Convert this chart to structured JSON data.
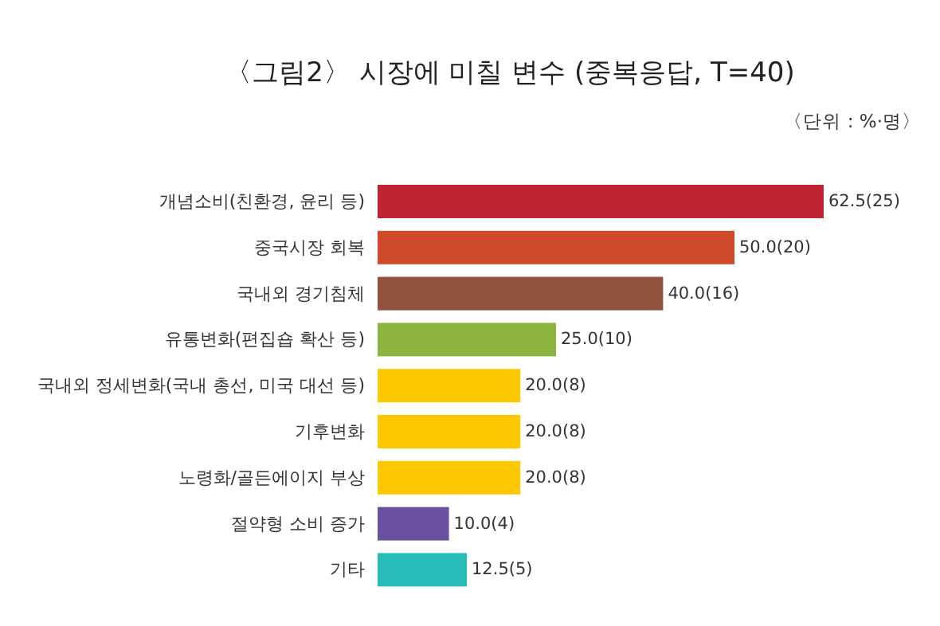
{
  "chart_data": {
    "type": "bar",
    "orientation": "horizontal",
    "title": "〈그림2〉 시장에 미칠 변수 (중복응답, T=40)",
    "annotations": [
      "〈단위 : %·명〉"
    ],
    "categories": [
      "개념소비(친환경, 윤리 등)",
      "중국시장 회복",
      "국내외 경기침체",
      "유통변화(편집숍 확산 등)",
      "국내외 정세변화(국내 총선, 미국 대선 등)",
      "기후변화",
      "노령화/골든에이지 부상",
      "절약형 소비 증가",
      "기타"
    ],
    "values": [
      62.5,
      50.0,
      40.0,
      25.0,
      20.0,
      20.0,
      20.0,
      10.0,
      12.5
    ],
    "value_labels": [
      "62.5(25)",
      "50.0(20)",
      "40.0(16)",
      "25.0(10)",
      "20.0(8)",
      "20.0(8)",
      "20.0(8)",
      "10.0(4)",
      "12.5(5)"
    ],
    "colors": [
      "#be2530",
      "#cf4a2a",
      "#93523e",
      "#8db43f",
      "#fdc800",
      "#fdc800",
      "#fdc800",
      "#6b4fa0",
      "#27bcb8"
    ]
  }
}
